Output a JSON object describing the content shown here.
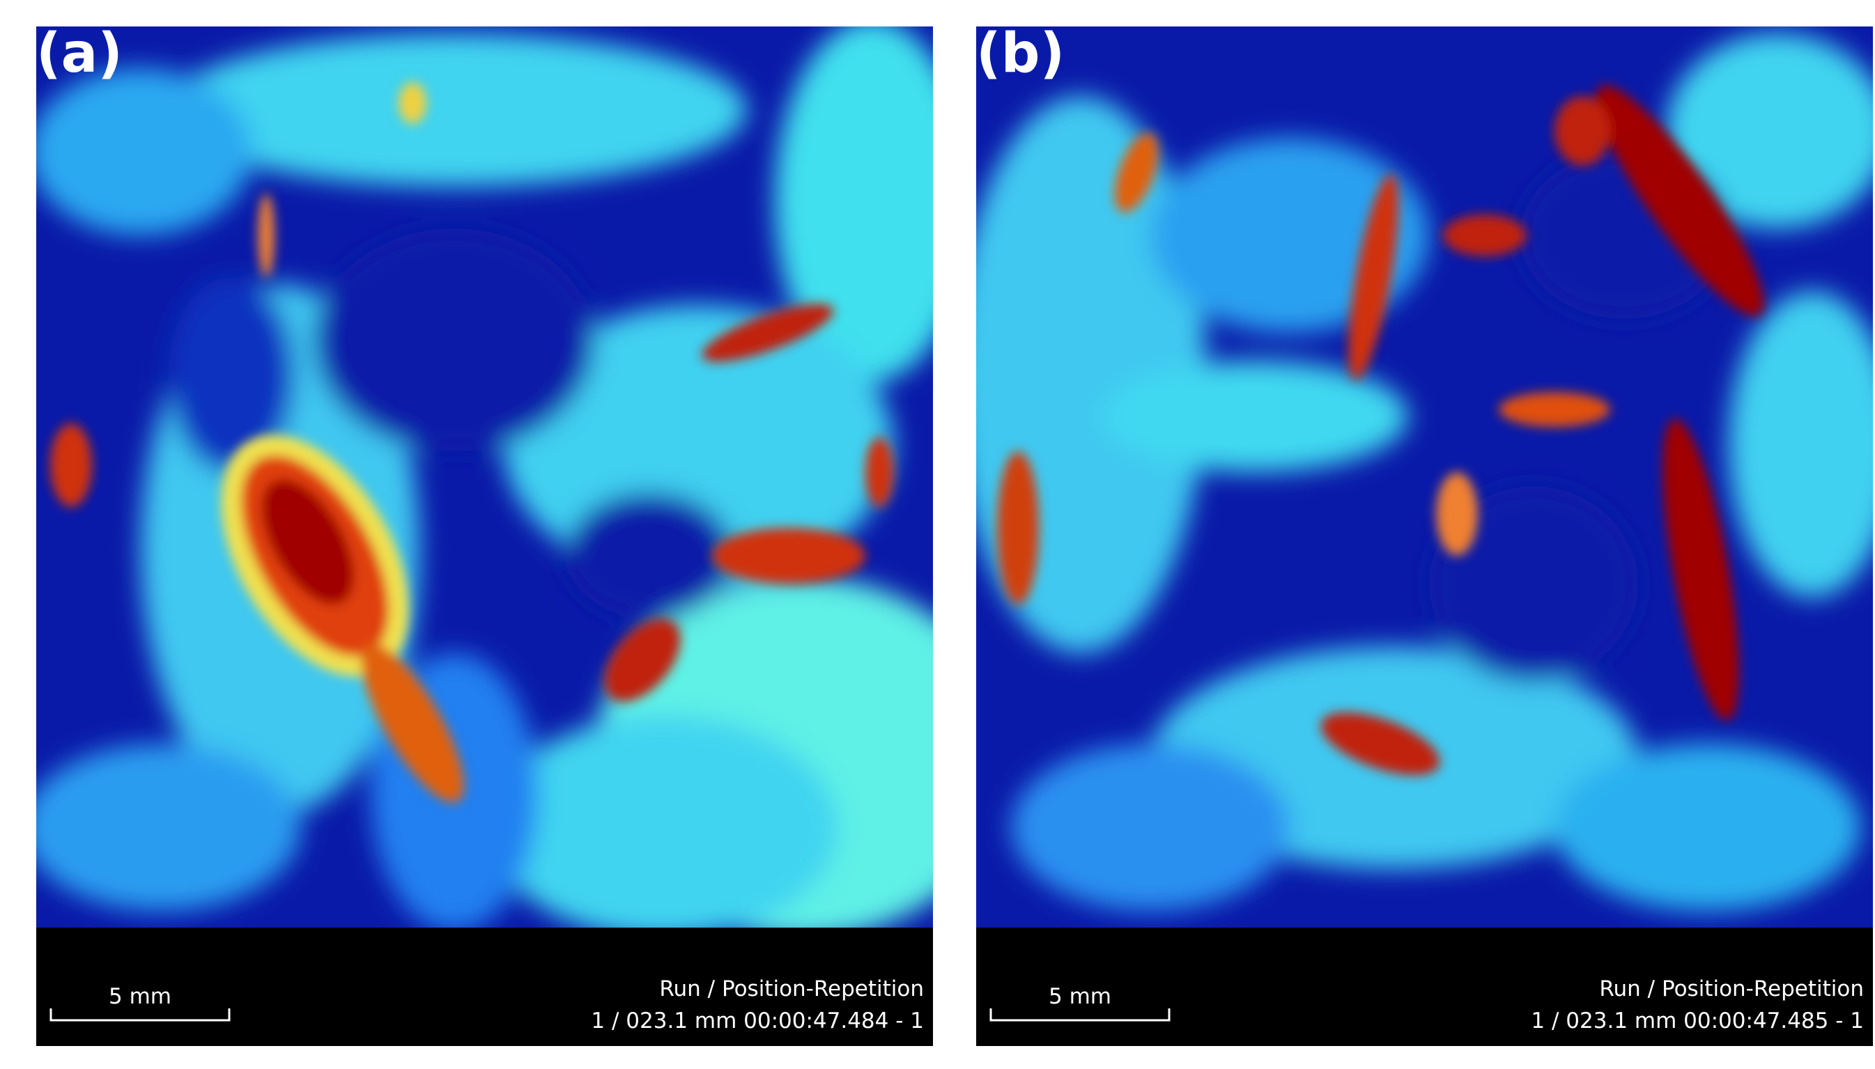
{
  "panels": [
    {
      "label": "(a)",
      "scale_bar": "5 mm",
      "info": {
        "title": "Run / Position-Repetition",
        "value": "1 / 023.1 mm 00:00:47.484 - 1"
      }
    },
    {
      "label": "(b)",
      "scale_bar": "5 mm",
      "info": {
        "title": "Run / Position-Repetition",
        "value": "1 / 023.1 mm 00:00:47.485 - 1"
      }
    }
  ]
}
